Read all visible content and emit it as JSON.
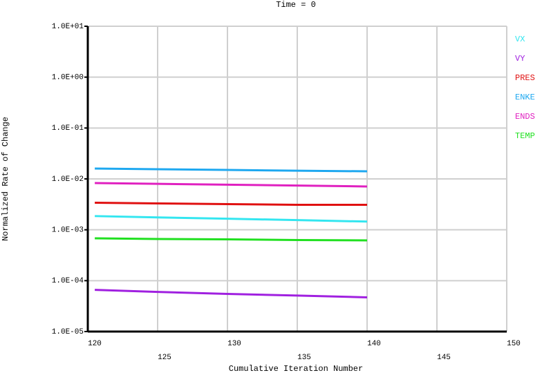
{
  "chart_data": {
    "type": "line",
    "title": "Time = 0",
    "x_label": "Cumulative Iteration Number",
    "y_label": "Normalized Rate of Change",
    "x": [
      120.5,
      125,
      130,
      135,
      140
    ],
    "series": [
      {
        "name": "VX",
        "color": "#33e6f0",
        "values": [
          0.00186,
          0.00175,
          0.00165,
          0.00155,
          0.00145
        ]
      },
      {
        "name": "VY",
        "color": "#a020e0",
        "values": [
          6.6e-05,
          6e-05,
          5.5e-05,
          5.1e-05,
          4.7e-05
        ]
      },
      {
        "name": "PRES",
        "color": "#e01010",
        "values": [
          0.0034,
          0.0033,
          0.0032,
          0.0031,
          0.0031
        ]
      },
      {
        "name": "ENKE",
        "color": "#1ea8f0",
        "values": [
          0.016,
          0.0155,
          0.015,
          0.0145,
          0.0141
        ]
      },
      {
        "name": "ENDS",
        "color": "#e020c0",
        "values": [
          0.0083,
          0.008,
          0.0077,
          0.0074,
          0.0071
        ]
      },
      {
        "name": "TEMP",
        "color": "#20e020",
        "values": [
          0.00068,
          0.00066,
          0.00065,
          0.00063,
          0.00062
        ]
      }
    ],
    "xlim": [
      120,
      150
    ],
    "xticks": [
      120,
      125,
      130,
      135,
      140,
      145,
      150
    ],
    "ylim": [
      1e-05,
      10
    ],
    "log_y": true,
    "grid": true,
    "legend": "right",
    "yticks": [
      {
        "value": 1e-05,
        "label": "1.0E-05"
      },
      {
        "value": 0.0001,
        "label": "1.0E-04"
      },
      {
        "value": 0.001,
        "label": "1.0E-03"
      },
      {
        "value": 0.01,
        "label": "1.0E-02"
      },
      {
        "value": 0.1,
        "label": "1.0E-01"
      },
      {
        "value": 1,
        "label": "1.0E+00"
      },
      {
        "value": 10,
        "label": "1.0E+01"
      }
    ]
  }
}
